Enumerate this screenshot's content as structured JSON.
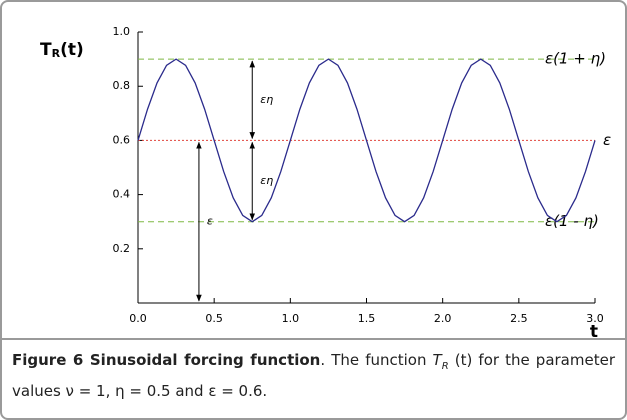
{
  "chart_data": {
    "type": "line",
    "ylabel": "T",
    "ylabel_sub": "R",
    "ylabel_suffix": "(t)",
    "xlabel": "t",
    "x": [
      0,
      0.0625,
      0.125,
      0.1875,
      0.25,
      0.3125,
      0.375,
      0.4375,
      0.5,
      0.5625,
      0.625,
      0.6875,
      0.75,
      0.8125,
      0.875,
      0.9375,
      1,
      1.0625,
      1.125,
      1.1875,
      1.25,
      1.3125,
      1.375,
      1.4375,
      1.5,
      1.5625,
      1.625,
      1.6875,
      1.75,
      1.8125,
      1.875,
      1.9375,
      2,
      2.0625,
      2.125,
      2.1875,
      2.25,
      2.3125,
      2.375,
      2.4375,
      2.5,
      2.5625,
      2.625,
      2.6875,
      2.75,
      2.8125,
      2.875,
      2.9375,
      3
    ],
    "series": [
      {
        "color": "#2b2b8c",
        "values": [
          0.6,
          0.715,
          0.812,
          0.877,
          0.9,
          0.877,
          0.812,
          0.715,
          0.6,
          0.485,
          0.388,
          0.323,
          0.3,
          0.323,
          0.388,
          0.485,
          0.6,
          0.715,
          0.812,
          0.877,
          0.9,
          0.877,
          0.812,
          0.715,
          0.6,
          0.485,
          0.388,
          0.323,
          0.3,
          0.323,
          0.388,
          0.485,
          0.6,
          0.715,
          0.812,
          0.877,
          0.9,
          0.877,
          0.812,
          0.715,
          0.6,
          0.485,
          0.388,
          0.323,
          0.3,
          0.323,
          0.388,
          0.485,
          0.6
        ]
      }
    ],
    "xlim": [
      0,
      3
    ],
    "xticks": [
      {
        "value": 0,
        "label": "0.0"
      },
      0.5,
      {
        "value": 1,
        "label": "1.0"
      },
      1.5,
      {
        "value": 2,
        "label": "2.0"
      },
      2.5,
      {
        "value": 3,
        "label": "3.0"
      }
    ],
    "ylim": [
      0,
      1
    ],
    "yticks": [
      0.2,
      0.4,
      0.6,
      0.8,
      {
        "value": 1,
        "label": "1.0"
      }
    ],
    "reference_lines": [
      {
        "value": 0.9,
        "label": "ε(1 + η)",
        "color": "#7fb843",
        "style": "dashed"
      },
      {
        "value": 0.6,
        "label": "ε",
        "color": "#e0443c",
        "style": "dotted"
      },
      {
        "value": 0.3,
        "label": "ε(1 - η)",
        "color": "#7fb843",
        "style": "dashed"
      }
    ],
    "arrows": [
      {
        "x": 0.75,
        "from": 0.9,
        "to": 0.6,
        "label": "εη"
      },
      {
        "x": 0.75,
        "from": 0.6,
        "to": 0.3,
        "label": "εη"
      },
      {
        "x": 0.4,
        "from": 0.6,
        "to": 0,
        "label": "ε"
      }
    ]
  },
  "caption": {
    "bold": "Figure 6 Sinusoidal forcing function",
    "text1": ". The function ",
    "symbol": "T",
    "subscript": "R",
    "text2": " (t) for the parameter values ν = 1, η = 0.5 and ε = 0.6."
  }
}
